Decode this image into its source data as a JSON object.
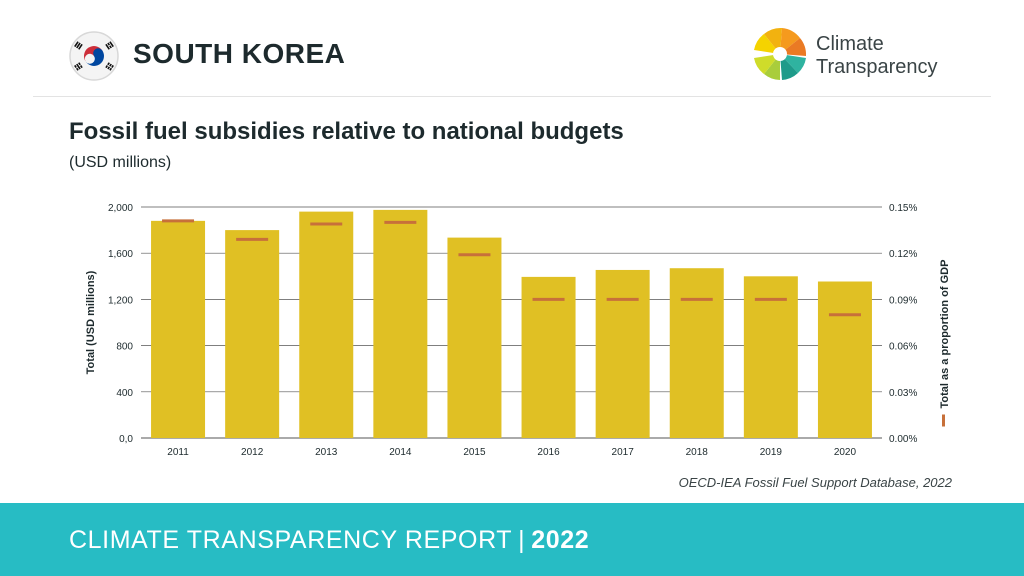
{
  "header": {
    "country": "SOUTH KOREA",
    "brand_line1": "Climate",
    "brand_line2": "Transparency",
    "flag_icon": "south-korea-flag-icon",
    "logo_icon": "climate-transparency-logo-icon"
  },
  "chart_data": {
    "type": "bar",
    "title": "Fossil fuel subsidies relative to national budgets",
    "subtitle": "(USD millions)",
    "categories": [
      "2011",
      "2012",
      "2013",
      "2014",
      "2015",
      "2016",
      "2017",
      "2018",
      "2019",
      "2020"
    ],
    "series": [
      {
        "name": "",
        "axis": "left",
        "values": [
          1880,
          1800,
          1960,
          1975,
          1735,
          1395,
          1455,
          1470,
          1400,
          1355
        ]
      },
      {
        "name": "Total as a proportion of GDP",
        "axis": "right",
        "marker": "dash",
        "values": [
          0.141,
          0.129,
          0.139,
          0.14,
          0.119,
          0.09,
          0.09,
          0.09,
          0.09,
          0.08
        ]
      }
    ],
    "ylabel": "Total (USD millions)",
    "ylabel_right": "Total as a proportion of GDP",
    "ylim": [
      0,
      2000
    ],
    "ylim_right": [
      0,
      0.15
    ],
    "yticks": [
      "0,0",
      "400",
      "800",
      "1,200",
      "1,600",
      "2,000"
    ],
    "yticks_right": [
      "0.00%",
      "0.03%",
      "0.06%",
      "0.09%",
      "0.12%",
      "0.15%"
    ],
    "grid": true,
    "colors": {
      "bar": "#e0c024",
      "dash": "#c7703a",
      "grid": "#555555"
    }
  },
  "source": "OECD-IEA Fossil Fuel Support Database, 2022",
  "footer": {
    "label": "CLIMATE TRANSPARENCY REPORT",
    "separator": "|",
    "year": "2022"
  }
}
